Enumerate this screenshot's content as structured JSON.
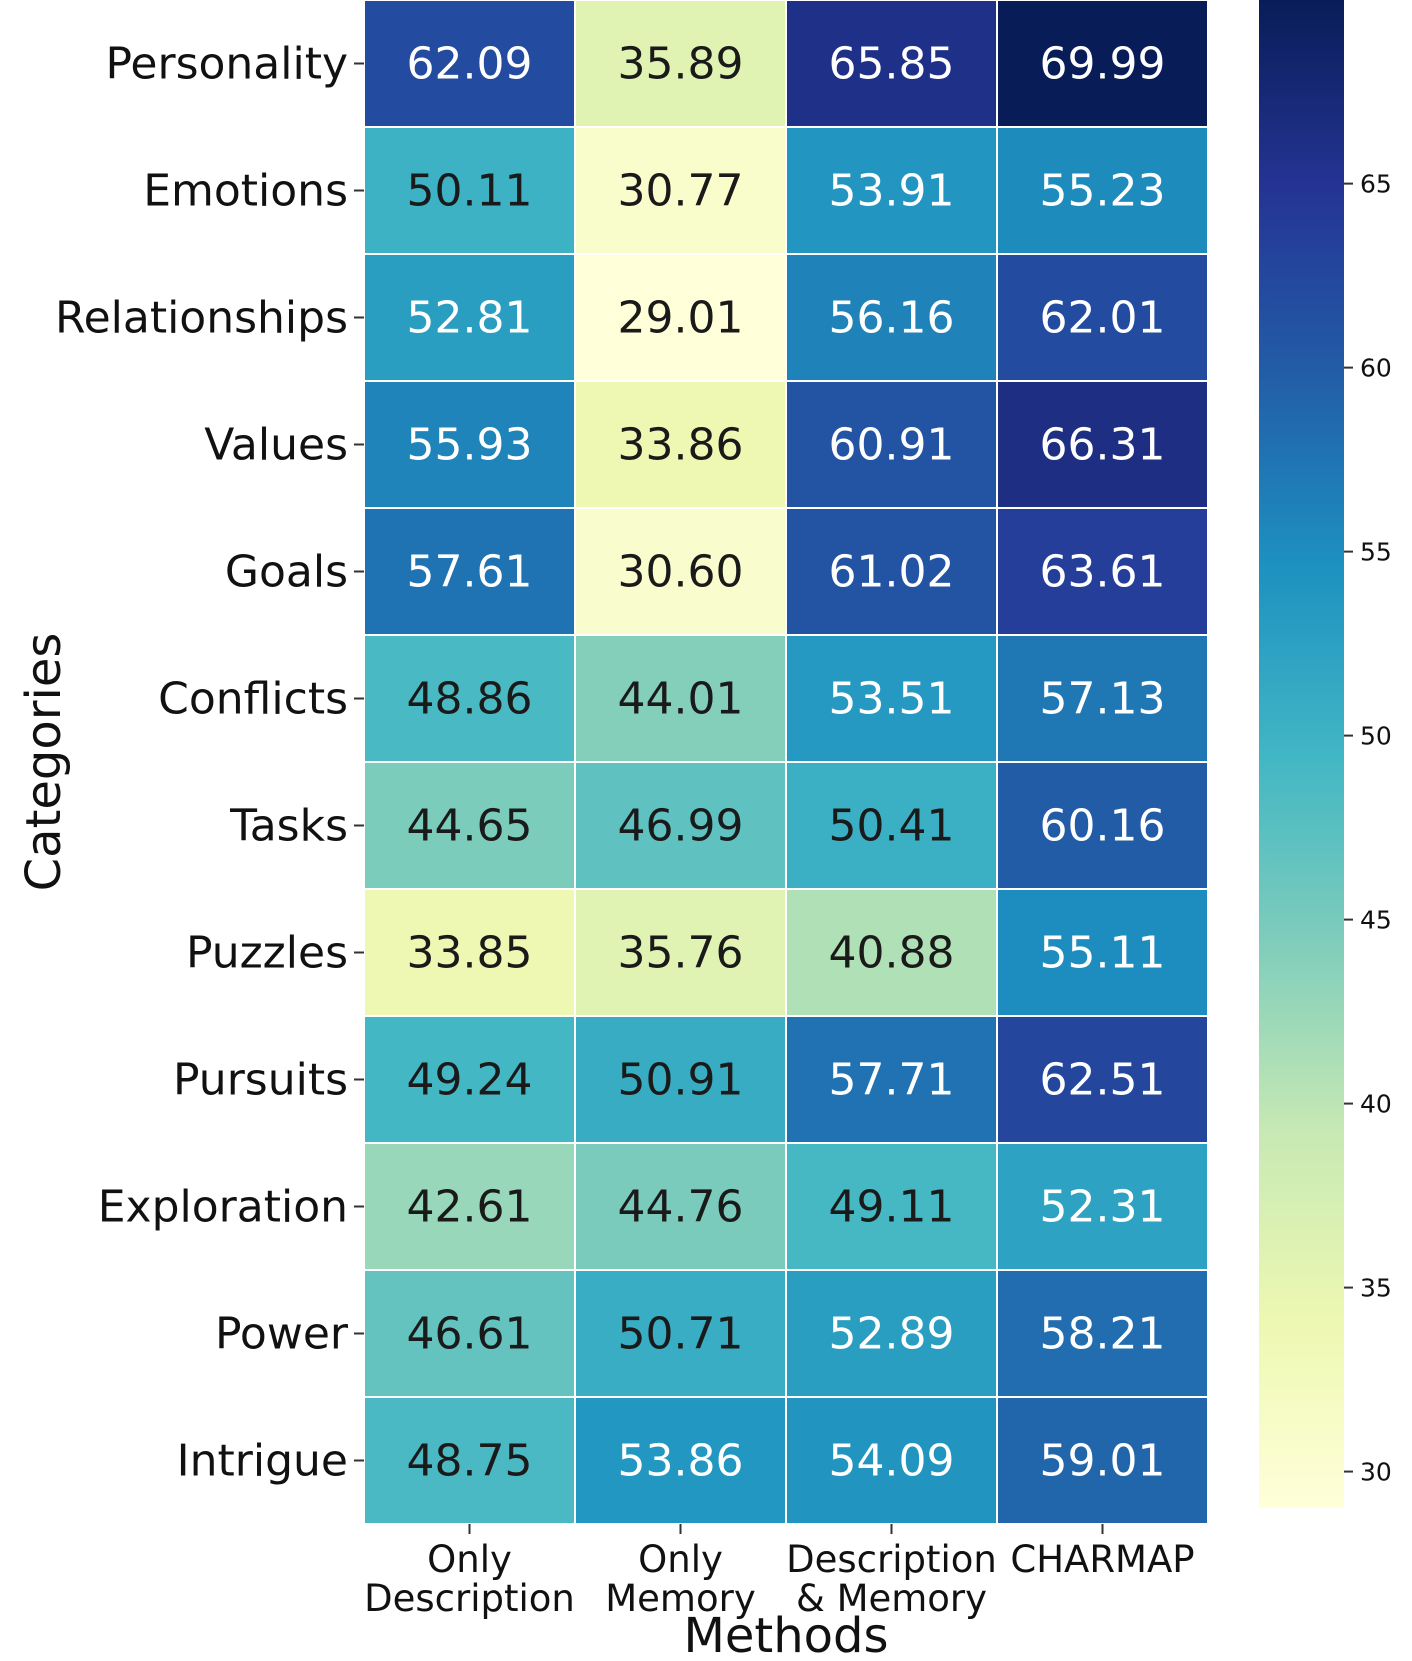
{
  "chart_data": {
    "type": "heatmap",
    "title": "",
    "xlabel": "Methods",
    "ylabel": "Categories",
    "columns": [
      [
        "Only",
        "Description"
      ],
      [
        "Only",
        "Memory"
      ],
      [
        "Description",
        "& Memory"
      ],
      [
        "CHARMAP"
      ]
    ],
    "rows": [
      "Personality",
      "Emotions",
      "Relationships",
      "Values",
      "Goals",
      "Conflicts",
      "Tasks",
      "Puzzles",
      "Pursuits",
      "Exploration",
      "Power",
      "Intrigue"
    ],
    "values": [
      [
        62.09,
        35.89,
        65.85,
        69.99
      ],
      [
        50.11,
        30.77,
        53.91,
        55.23
      ],
      [
        52.81,
        29.01,
        56.16,
        62.01
      ],
      [
        55.93,
        33.86,
        60.91,
        66.31
      ],
      [
        57.61,
        30.6,
        61.02,
        63.61
      ],
      [
        48.86,
        44.01,
        53.51,
        57.13
      ],
      [
        44.65,
        46.99,
        50.41,
        60.16
      ],
      [
        33.85,
        35.76,
        40.88,
        55.11
      ],
      [
        49.24,
        50.91,
        57.71,
        62.51
      ],
      [
        42.61,
        44.76,
        49.11,
        52.31
      ],
      [
        46.61,
        50.71,
        52.89,
        58.21
      ],
      [
        48.75,
        53.86,
        54.09,
        59.01
      ]
    ],
    "colorbar": {
      "colormap": "YlGnBu",
      "range": [
        29.01,
        69.99
      ],
      "ticks": [
        "30",
        "35",
        "40",
        "45",
        "50",
        "55",
        "60",
        "65"
      ]
    },
    "annotation_colors": {
      "dark_text": "#1a1a1a",
      "light_text": "#ffffff"
    },
    "grid": true
  }
}
